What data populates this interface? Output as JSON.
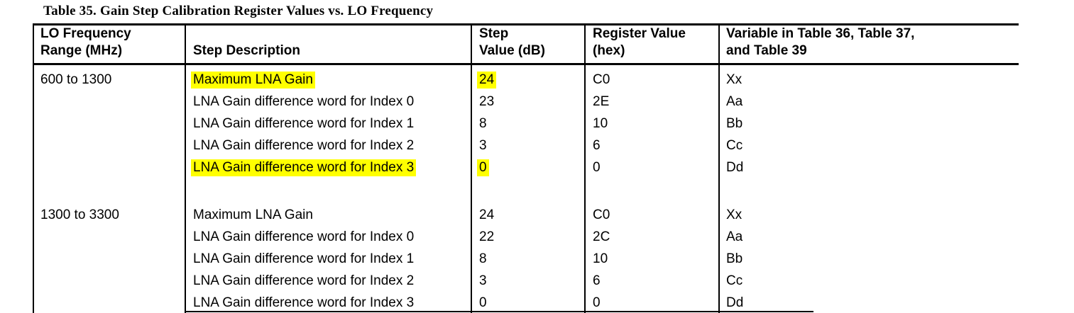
{
  "title": "Table 35. Gain Step Calibration Register Values vs. LO Frequency",
  "highlight_color": "#ffff00",
  "table": {
    "columns": [
      {
        "line1": "LO Frequency",
        "line2": "Range (MHz)"
      },
      {
        "line1": "",
        "line2": "Step Description"
      },
      {
        "line1": "Step",
        "line2": "Value (dB)"
      },
      {
        "line1": "Register Value",
        "line2": "(hex)"
      },
      {
        "line1": "Variable in Table 36, Table 37,",
        "line2": "and Table 39"
      }
    ],
    "groups": [
      {
        "range": "600 to 1300",
        "rows": [
          {
            "desc": "Maximum LNA Gain",
            "step": "24",
            "reg": "C0",
            "var": "Xx",
            "highlight": true
          },
          {
            "desc": "LNA Gain difference word for Index 0",
            "step": "23",
            "reg": "2E",
            "var": "Aa",
            "highlight": false
          },
          {
            "desc": "LNA Gain difference word for Index 1",
            "step": "8",
            "reg": "10",
            "var": "Bb",
            "highlight": false
          },
          {
            "desc": "LNA Gain difference word for Index 2",
            "step": "3",
            "reg": "6",
            "var": "Cc",
            "highlight": false
          },
          {
            "desc": "LNA Gain difference word for Index 3",
            "step": "0",
            "reg": "0",
            "var": "Dd",
            "highlight": true
          }
        ]
      },
      {
        "range": "1300 to 3300",
        "rows": [
          {
            "desc": "Maximum LNA Gain",
            "step": "24",
            "reg": "C0",
            "var": "Xx",
            "highlight": false
          },
          {
            "desc": "LNA Gain difference word for Index 0",
            "step": "22",
            "reg": "2C",
            "var": "Aa",
            "highlight": false
          },
          {
            "desc": "LNA Gain difference word for Index 1",
            "step": "8",
            "reg": "10",
            "var": "Bb",
            "highlight": false
          },
          {
            "desc": "LNA Gain difference word for Index 2",
            "step": "3",
            "reg": "6",
            "var": "Cc",
            "highlight": false
          },
          {
            "desc": "LNA Gain difference word for Index 3",
            "step": "0",
            "reg": "0",
            "var": "Dd",
            "highlight": false
          }
        ]
      }
    ]
  }
}
